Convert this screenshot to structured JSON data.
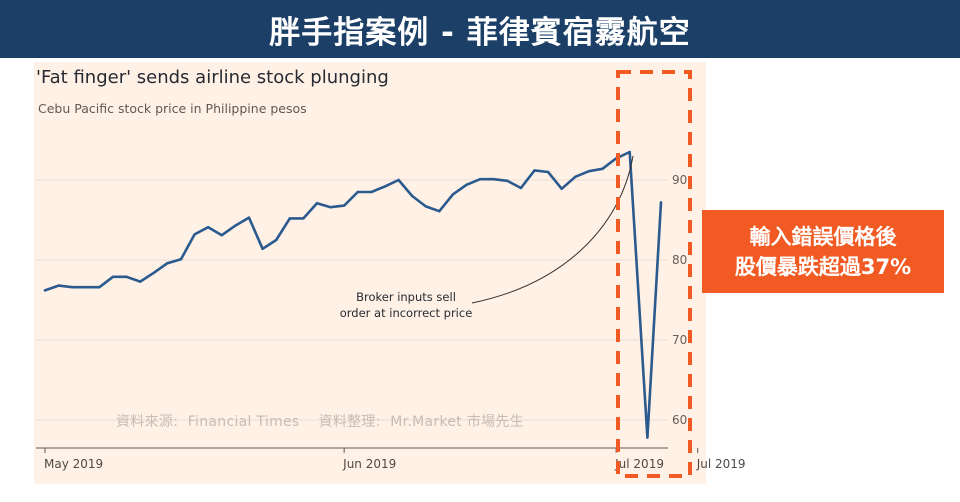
{
  "banner": {
    "title": "胖手指案例 - 菲律賓宿霧航空"
  },
  "chart": {
    "title": "'Fat finger' sends airline stock plunging",
    "subtitle": "Cebu Pacific stock price in Philippine pesos",
    "annotation": [
      "Broker inputs sell",
      "order at incorrect price"
    ],
    "source_note": "資料來源:  Financial Times    資料整理:  Mr.Market 市場先生"
  },
  "callout": {
    "text": "輸入錯誤價格後\n股價暴跌超過37%"
  },
  "colors": {
    "banner": "#1b3f66",
    "panel": "#fff1e5",
    "line": "#2b5a8f",
    "highlight": "#f15a22",
    "grid": "#eadfd6"
  },
  "chart_data": {
    "type": "line",
    "title": "'Fat finger' sends airline stock plunging",
    "subtitle": "Cebu Pacific stock price in Philippine pesos",
    "xlabel": "",
    "ylabel": "",
    "ylim": [
      56,
      97
    ],
    "y_ticks": [
      60,
      70,
      80,
      90
    ],
    "y_axis_side": "right",
    "x_ticks": [
      {
        "x": 1,
        "label": "May 2019"
      },
      {
        "x": 23,
        "label": "Jun 2019"
      },
      {
        "x": 43,
        "label": "Jul 2019"
      },
      {
        "x": 49,
        "label": "Jul 2019"
      }
    ],
    "grid": true,
    "series": [
      {
        "values": [
          76.2,
          76.8,
          76.6,
          76.6,
          76.6,
          77.9,
          77.9,
          77.3,
          78.4,
          79.6,
          80.1,
          83.2,
          84.1,
          83.1,
          84.3,
          85.3,
          81.4,
          82.5,
          85.2,
          85.2,
          87.1,
          86.6,
          86.8,
          88.5,
          88.5,
          89.2,
          90.0,
          88.0,
          86.7,
          86.1,
          88.2,
          89.4,
          90.1,
          90.1,
          89.9,
          89.0,
          91.2,
          91.0,
          88.9,
          90.4,
          91.1,
          91.4,
          92.7,
          93.5,
          57.8,
          87.2
        ],
        "x": [
          1,
          2,
          3,
          4,
          5,
          6,
          7,
          8,
          9,
          10,
          11,
          12,
          13,
          14,
          15,
          16,
          17,
          18,
          19,
          20,
          21,
          22,
          23,
          24,
          25,
          26,
          27,
          28,
          29,
          30,
          31,
          32,
          33,
          34,
          35,
          36,
          37,
          38,
          39,
          40,
          41,
          42,
          43,
          44,
          45.3,
          46.3
        ]
      }
    ]
  }
}
